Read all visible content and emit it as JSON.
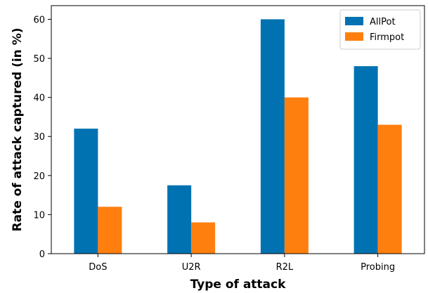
{
  "chart_data": {
    "type": "bar",
    "categories": [
      "DoS",
      "U2R",
      "R2L",
      "Probing"
    ],
    "series": [
      {
        "name": "AllPot",
        "values": [
          32,
          17.5,
          60,
          48
        ],
        "color": "#0072b2"
      },
      {
        "name": "Firmpot",
        "values": [
          12,
          8,
          40,
          33
        ],
        "color": "#ff7f0e"
      }
    ],
    "xlabel": "Type of attack",
    "ylabel": "Rate of attack captured (in %)",
    "ylim": [
      0,
      63.5
    ],
    "yticks": [
      0,
      10,
      20,
      30,
      40,
      50,
      60
    ],
    "grid": false,
    "legend_position": "top-right"
  }
}
